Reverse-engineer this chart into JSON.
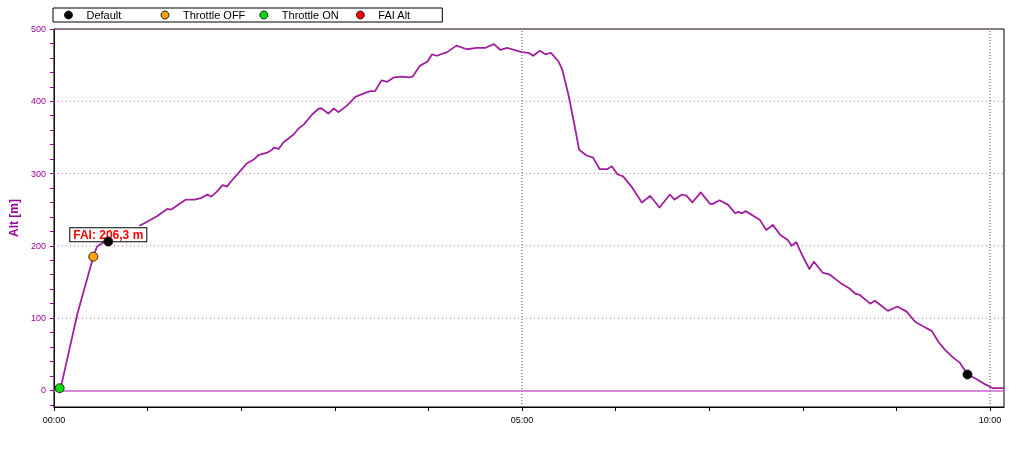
{
  "chart_data": {
    "type": "line",
    "ylabel": "Alt [m]",
    "xlim": [
      0,
      10.15
    ],
    "xticks": [
      {
        "value": 0,
        "label": "00:00"
      },
      {
        "value": 1,
        "label": null
      },
      {
        "value": 2,
        "label": null
      },
      {
        "value": 3,
        "label": null
      },
      {
        "value": 4,
        "label": null
      },
      {
        "value": 5,
        "label": "05:00"
      },
      {
        "value": 6,
        "label": null
      },
      {
        "value": 7,
        "label": null
      },
      {
        "value": 8,
        "label": null
      },
      {
        "value": 9,
        "label": null
      },
      {
        "value": 10,
        "label": "10:00"
      }
    ],
    "ylim": [
      -23,
      500
    ],
    "yticks": [
      {
        "value": -20,
        "label": null
      },
      0,
      {
        "value": 20,
        "label": null
      },
      {
        "value": 40,
        "label": null
      },
      {
        "value": 60,
        "label": null
      },
      {
        "value": 80,
        "label": null
      },
      100,
      {
        "value": 120,
        "label": null
      },
      {
        "value": 140,
        "label": null
      },
      {
        "value": 160,
        "label": null
      },
      {
        "value": 180,
        "label": null
      },
      200,
      {
        "value": 220,
        "label": null
      },
      {
        "value": 240,
        "label": null
      },
      {
        "value": 260,
        "label": null
      },
      {
        "value": 280,
        "label": null
      },
      300,
      {
        "value": 320,
        "label": null
      },
      {
        "value": 340,
        "label": null
      },
      {
        "value": 360,
        "label": null
      },
      {
        "value": 380,
        "label": null
      },
      400,
      {
        "value": 420,
        "label": null
      },
      {
        "value": 440,
        "label": null
      },
      {
        "value": 460,
        "label": null
      },
      {
        "value": 480,
        "label": null
      },
      500
    ],
    "grid": true,
    "legend": "top left",
    "marker": "circle",
    "ref_lines": [
      {
        "axis": "y",
        "value": 0,
        "color": "#cc66cc"
      }
    ],
    "annotations": [
      {
        "text": "FAI: 206,3 m",
        "x": 0.58,
        "y": 206.3
      }
    ],
    "series": [
      {
        "marker": "none",
        "color": "#a020a0",
        "x": [
          0.02,
          0.06,
          0.08,
          0.25,
          0.42,
          0.46,
          0.53,
          0.58,
          0.71,
          0.92,
          0.96,
          1.1,
          1.21,
          1.25,
          1.35,
          1.41,
          1.5,
          1.57,
          1.64,
          1.68,
          1.74,
          1.8,
          1.85,
          1.89,
          1.94,
          2.06,
          2.13,
          2.19,
          2.28,
          2.33,
          2.35,
          2.4,
          2.45,
          2.56,
          2.61,
          2.67,
          2.76,
          2.83,
          2.86,
          2.93,
          2.99,
          3.04,
          3.13,
          3.22,
          3.31,
          3.38,
          3.43,
          3.5,
          3.56,
          3.63,
          3.72,
          3.79,
          3.83,
          3.91,
          3.99,
          4.04,
          4.09,
          4.2,
          4.3,
          4.41,
          4.52,
          4.61,
          4.7,
          4.77,
          4.84,
          5.0,
          5.07,
          5.12,
          5.19,
          5.25,
          5.31,
          5.39,
          5.43,
          5.5,
          5.57,
          5.61,
          5.69,
          5.76,
          5.83,
          5.91,
          5.96,
          6.02,
          6.08,
          6.17,
          6.28,
          6.37,
          6.47,
          6.58,
          6.63,
          6.71,
          6.76,
          6.82,
          6.91,
          7.01,
          7.04,
          7.11,
          7.2,
          7.28,
          7.31,
          7.35,
          7.39,
          7.54,
          7.61,
          7.68,
          7.76,
          7.84,
          7.88,
          7.93,
          7.99,
          8.07,
          8.12,
          8.21,
          8.29,
          8.41,
          8.5,
          8.56,
          8.61,
          8.72,
          8.77,
          8.84,
          8.91,
          9.01,
          9.11,
          9.2,
          9.28,
          9.38,
          9.45,
          9.52,
          9.61,
          9.68,
          9.76,
          9.85,
          9.94,
          10.03,
          10.14
        ],
        "values": [
          1,
          3,
          8,
          106,
          185,
          199,
          205,
          206,
          null,
          228,
          231,
          241,
          251,
          250,
          259,
          264,
          264,
          266,
          271,
          268,
          275,
          284,
          282,
          289,
          296,
          314,
          319,
          326,
          329,
          333,
          336,
          334,
          343,
          354,
          362,
          368,
          382,
          390,
          390,
          383,
          390,
          385,
          394,
          406,
          411,
          414,
          414,
          429,
          427,
          433,
          434,
          433,
          434,
          449,
          455,
          465,
          463,
          468,
          477,
          472,
          474,
          474,
          479,
          471,
          474,
          468,
          467,
          463,
          470,
          465,
          467,
          455,
          444,
          407,
          361,
          333,
          325,
          322,
          306,
          306,
          310,
          299,
          296,
          282,
          260,
          269,
          253,
          271,
          264,
          271,
          269,
          260,
          274,
          258,
          258,
          263,
          257,
          245,
          247,
          245,
          248,
          236,
          222,
          229,
          215,
          208,
          200,
          205,
          188,
          168,
          178,
          163,
          160,
          148,
          141,
          134,
          132,
          120,
          124,
          117,
          110,
          116,
          109,
          95,
          89,
          82,
          67,
          56,
          45,
          38,
          22,
          16,
          9,
          3,
          3
        ]
      },
      {
        "type": "scatter",
        "name": "Default",
        "color": "#000000",
        "x": [
          0.58,
          9.76
        ],
        "values": [
          206,
          22
        ]
      },
      {
        "type": "scatter",
        "name": "Throttle OFF",
        "color": "#ffa500",
        "x": [
          0.42
        ],
        "values": [
          185
        ]
      },
      {
        "type": "scatter",
        "name": "Throttle ON",
        "color": "#00dd00",
        "x": [
          0.06
        ],
        "values": [
          3
        ]
      },
      {
        "type": "scatter",
        "name": "FAI Alt",
        "color": "#ff0000"
      }
    ]
  }
}
